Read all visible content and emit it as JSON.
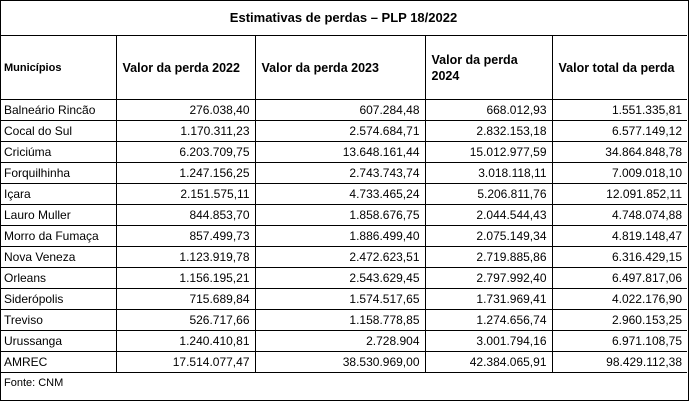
{
  "title": "Estimativas de perdas – PLP 18/2022",
  "headers": [
    "Municípios",
    "Valor da perda 2022",
    "Valor da perda 2023",
    "Valor da perda 2024",
    "Valor total da perda"
  ],
  "rows": [
    [
      "Balneário Rincão",
      "276.038,40",
      "607.284,48",
      "668.012,93",
      "1.551.335,81"
    ],
    [
      "Cocal do Sul",
      "1.170.311,23",
      "2.574.684,71",
      "2.832.153,18",
      "6.577.149,12"
    ],
    [
      "Criciúma",
      "6.203.709,75",
      "13.648.161,44",
      "15.012.977,59",
      "34.864.848,78"
    ],
    [
      "Forquilhinha",
      "1.247.156,25",
      "2.743.743,74",
      "3.018.118,11",
      "7.009.018,10"
    ],
    [
      "Içara",
      "2.151.575,11",
      "4.733.465,24",
      "5.206.811,76",
      "12.091.852,11"
    ],
    [
      "Lauro Muller",
      "844.853,70",
      "1.858.676,75",
      "2.044.544,43",
      "4.748.074,88"
    ],
    [
      "Morro da Fumaça",
      "857.499,73",
      "1.886.499,40",
      "2.075.149,34",
      "4.819.148,47"
    ],
    [
      "Nova Veneza",
      "1.123.919,78",
      "2.472.623,51",
      "2.719.885,86",
      "6.316.429,15"
    ],
    [
      "Orleans",
      "1.156.195,21",
      "2.543.629,45",
      "2.797.992,40",
      "6.497.817,06"
    ],
    [
      "Siderópolis",
      "715.689,84",
      "1.574.517,65",
      "1.731.969,41",
      "4.022.176,90"
    ],
    [
      "Treviso",
      "526.717,66",
      "1.158.778,85",
      "1.274.656,74",
      "2.960.153,25"
    ],
    [
      "Urussanga",
      "1.240.410,81",
      "2.728.904",
      "3.001.794,16",
      "6.971.108,75"
    ],
    [
      "AMREC",
      "17.514.077,47",
      "38.530.969,00",
      "42.384.065,91",
      "98.429.112,38"
    ]
  ],
  "footer": "Fonte: CNM"
}
